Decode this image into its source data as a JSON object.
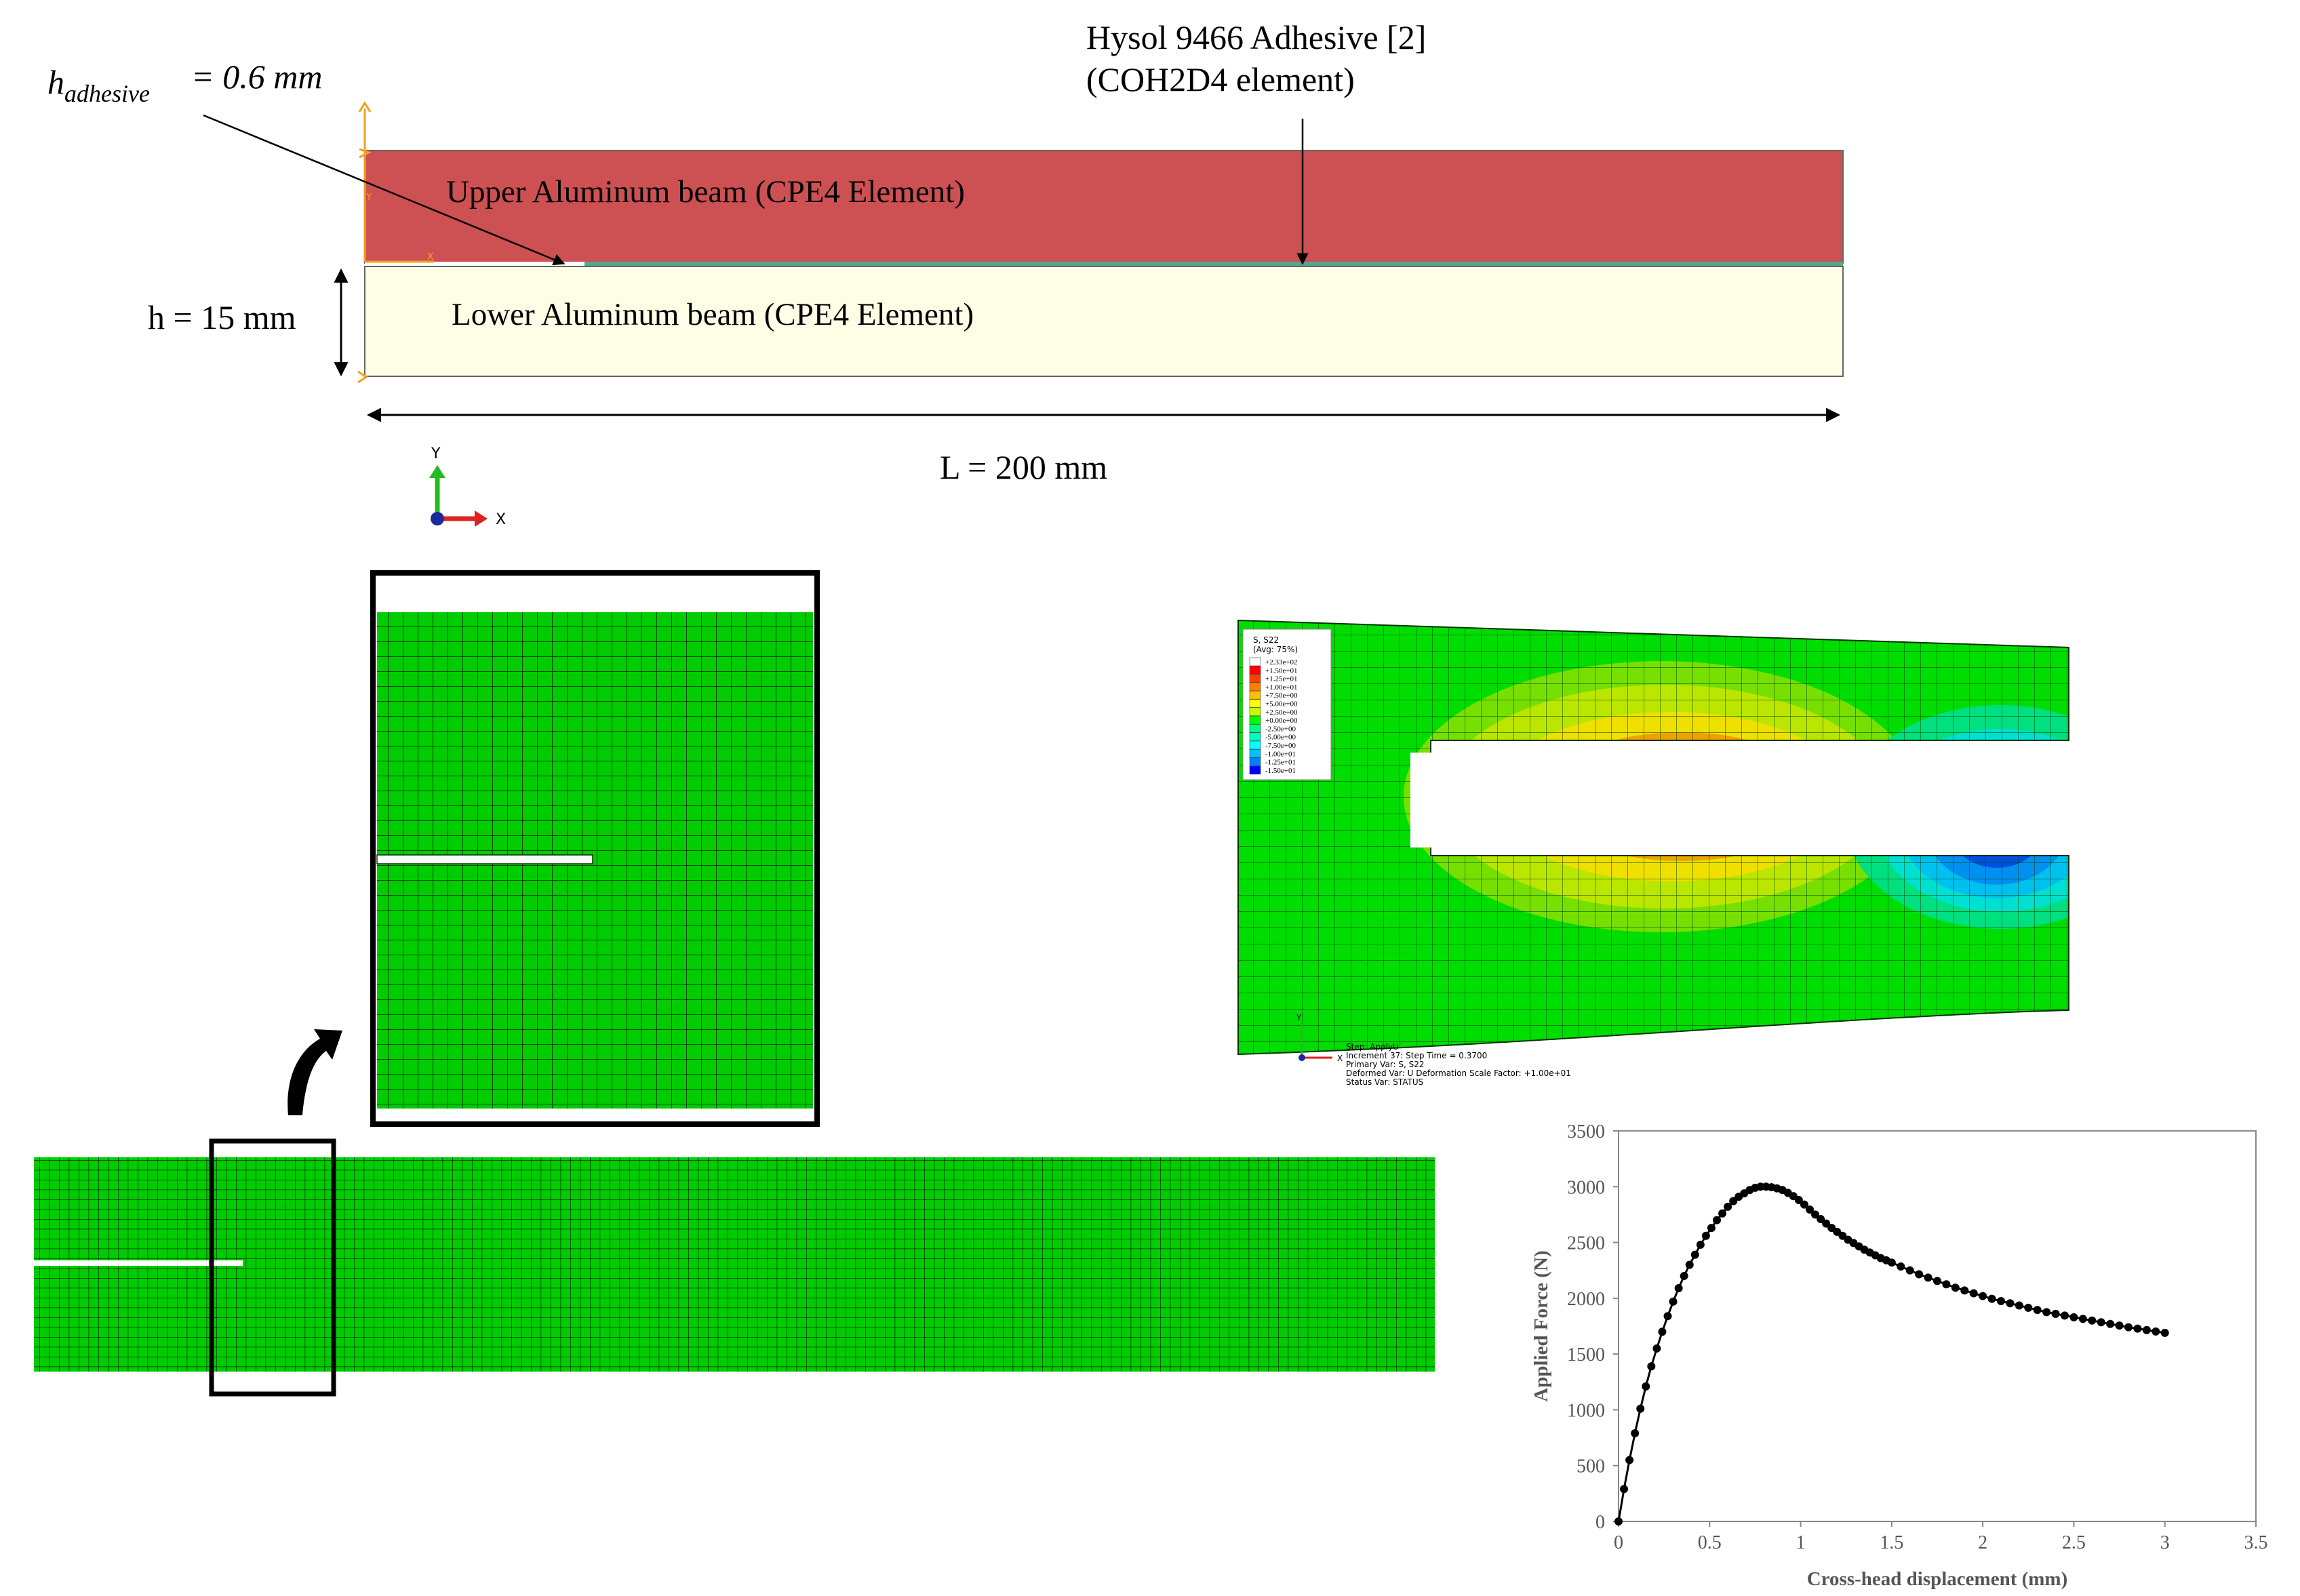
{
  "schematic": {
    "adhesive_thickness_label": "= 0.6 mm",
    "adhesive_label_line1": "Hysol 9466 Adhesive [2]",
    "adhesive_label_line2": "(COH2D4 element)",
    "upper_beam_label": "Upper Aluminum beam (CPE4 Element)",
    "lower_beam_label": "Lower Aluminum beam (CPE4 Element)",
    "height_label": "h = 15 mm",
    "length_label": "L = 200 mm",
    "axis_y_label": "Y",
    "axis_x_label": "X",
    "colors": {
      "upper_beam": "#cd5052",
      "lower_beam": "#fefee6",
      "adhesive": "#55a58f",
      "support_marker": "#f0a020"
    }
  },
  "mesh": {
    "colors": {
      "fill": "#00cc00",
      "line": "#003300",
      "frame": "#000000"
    }
  },
  "contour": {
    "legend_title_line1": "S, S22",
    "legend_title_line2": "(Avg: 75%)",
    "legend_entries": [
      {
        "label": "+2.33e+02",
        "color": "#ffffff"
      },
      {
        "label": "+1.50e+01",
        "color": "#ff0000"
      },
      {
        "label": "+1.25e+01",
        "color": "#ff4000"
      },
      {
        "label": "+1.00e+01",
        "color": "#ff8000"
      },
      {
        "label": "+7.50e+00",
        "color": "#ffbf00"
      },
      {
        "label": "+5.00e+00",
        "color": "#ffff00"
      },
      {
        "label": "+2.50e+00",
        "color": "#bfff00"
      },
      {
        "label": "+0.00e+00",
        "color": "#00ff00"
      },
      {
        "label": "-2.50e+00",
        "color": "#00ff80"
      },
      {
        "label": "-5.00e+00",
        "color": "#00ffbf"
      },
      {
        "label": "-7.50e+00",
        "color": "#00ffff"
      },
      {
        "label": "-1.00e+01",
        "color": "#00bfff"
      },
      {
        "label": "-1.25e+01",
        "color": "#0080ff"
      },
      {
        "label": "-1.50e+01",
        "color": "#0000ff"
      }
    ],
    "info_lines": [
      "Step: ApplyU",
      "Increment     37: Step Time =    0.3700",
      "Primary Var: S, S22",
      "Deformed Var: U   Deformation Scale Factor: +1.00e+01",
      "Status Var: STATUS"
    ],
    "axis_y_label": "Y",
    "axis_x_label": "X"
  },
  "chart_data": {
    "type": "scatter",
    "title": "",
    "xlabel": "Cross-head displacement (mm)",
    "ylabel": "Applied Force (N)",
    "xlim": [
      0,
      3.5
    ],
    "ylim": [
      0,
      3500
    ],
    "xticks": [
      "0",
      "0.5",
      "1",
      "1.5",
      "2",
      "2.5",
      "3",
      "3.5"
    ],
    "yticks": [
      "0",
      "500",
      "1000",
      "1500",
      "2000",
      "2500",
      "3000",
      "3500"
    ],
    "grid": false,
    "series": [
      {
        "marker": "filled-circle",
        "x": [
          0,
          0.03,
          0.06,
          0.09,
          0.12,
          0.15,
          0.18,
          0.21,
          0.24,
          0.27,
          0.3,
          0.33,
          0.36,
          0.39,
          0.42,
          0.45,
          0.48,
          0.51,
          0.54,
          0.57,
          0.6,
          0.63,
          0.66,
          0.69,
          0.72,
          0.75,
          0.78,
          0.81,
          0.84,
          0.87,
          0.9,
          0.93,
          0.96,
          0.99,
          1.02,
          1.05,
          1.08,
          1.11,
          1.14,
          1.17,
          1.2,
          1.23,
          1.26,
          1.29,
          1.32,
          1.35,
          1.38,
          1.41,
          1.44,
          1.47,
          1.5,
          1.55,
          1.6,
          1.65,
          1.7,
          1.75,
          1.8,
          1.85,
          1.9,
          1.95,
          2.0,
          2.05,
          2.1,
          2.15,
          2.2,
          2.25,
          2.3,
          2.35,
          2.4,
          2.45,
          2.5,
          2.55,
          2.6,
          2.65,
          2.7,
          2.75,
          2.8,
          2.85,
          2.9,
          2.95,
          3.0
        ],
        "y": [
          0,
          290,
          550,
          790,
          1010,
          1210,
          1390,
          1550,
          1700,
          1840,
          1970,
          2090,
          2200,
          2300,
          2390,
          2480,
          2560,
          2630,
          2700,
          2760,
          2820,
          2870,
          2910,
          2940,
          2970,
          2990,
          3000,
          3000,
          2995,
          2985,
          2970,
          2945,
          2915,
          2880,
          2840,
          2795,
          2750,
          2710,
          2670,
          2630,
          2595,
          2560,
          2525,
          2495,
          2465,
          2435,
          2410,
          2385,
          2360,
          2340,
          2320,
          2285,
          2250,
          2215,
          2185,
          2155,
          2125,
          2095,
          2070,
          2045,
          2020,
          1995,
          1975,
          1955,
          1935,
          1915,
          1895,
          1875,
          1860,
          1845,
          1830,
          1815,
          1800,
          1785,
          1770,
          1755,
          1740,
          1728,
          1715,
          1702,
          1690
        ]
      }
    ]
  }
}
